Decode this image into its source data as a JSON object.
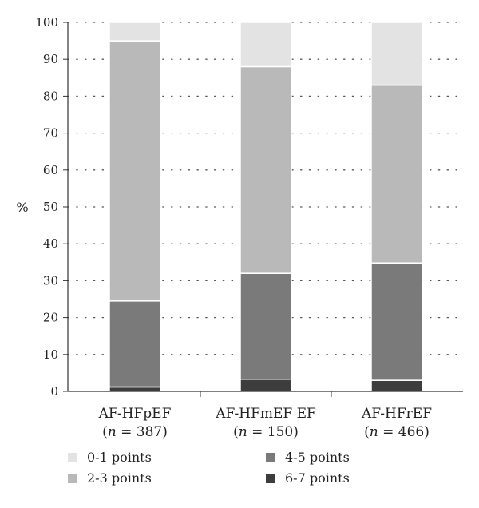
{
  "chart_data": {
    "type": "bar",
    "stacked": true,
    "title": "",
    "xlabel": "",
    "ylabel": "%",
    "ylim": [
      0,
      100
    ],
    "yticks": [
      0,
      10,
      20,
      30,
      40,
      50,
      60,
      70,
      80,
      90,
      100
    ],
    "grid": "horizontal-dotted",
    "legend_position": "bottom",
    "categories": [
      {
        "label": "AF-HFpEF",
        "n_prefix": "(",
        "n_var": "n",
        "n_text": " = 387)"
      },
      {
        "label": "AF-HFmEF EF",
        "n_prefix": "(",
        "n_var": "n",
        "n_text": " = 150)"
      },
      {
        "label": "AF-HFrEF",
        "n_prefix": "(",
        "n_var": "n",
        "n_text": " = 466)"
      }
    ],
    "series": [
      {
        "name": "6-7 points",
        "color": "#3d3d3d",
        "values": [
          1.2,
          3.3,
          3.0
        ]
      },
      {
        "name": "4-5 points",
        "color": "#7a7a7a",
        "values": [
          23.3,
          28.7,
          31.8
        ]
      },
      {
        "name": "2-3 points",
        "color": "#b9b9b9",
        "values": [
          70.5,
          56.0,
          48.2
        ]
      },
      {
        "name": "0-1 points",
        "color": "#e3e3e3",
        "values": [
          5.0,
          12.0,
          17.0
        ]
      }
    ]
  }
}
